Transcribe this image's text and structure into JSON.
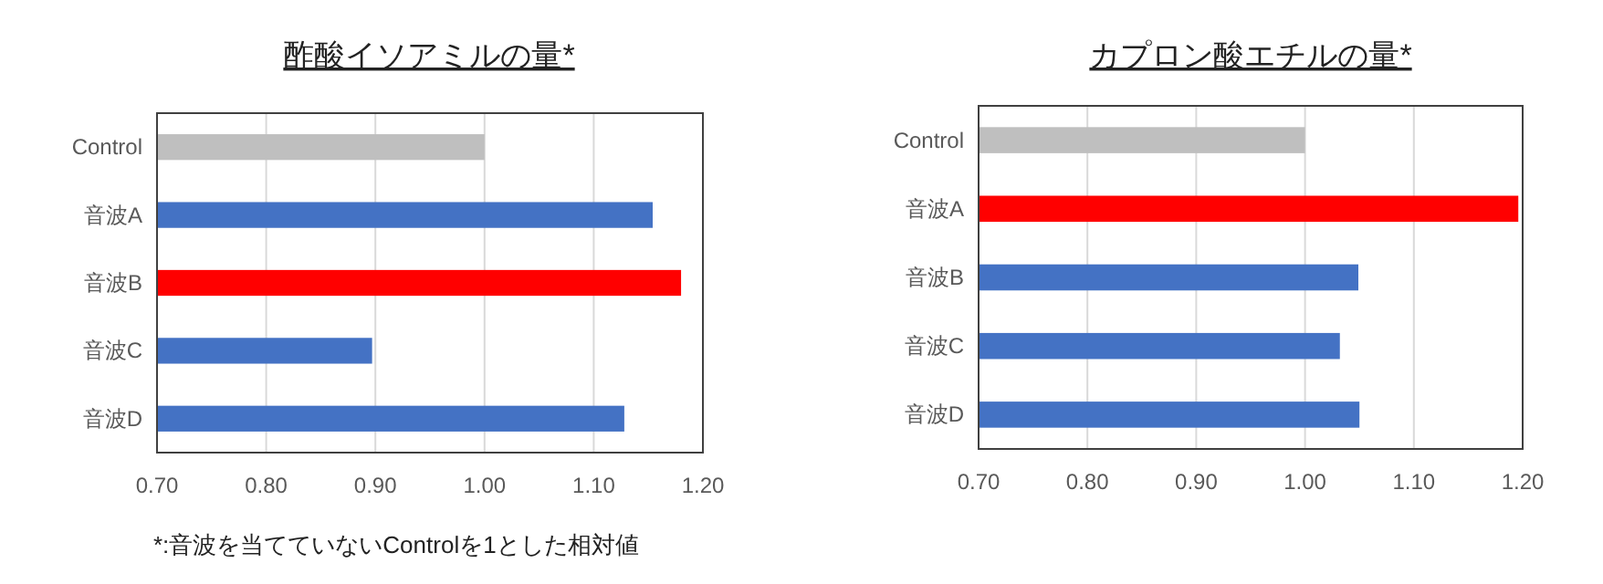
{
  "chart_data": [
    {
      "type": "bar",
      "orientation": "horizontal",
      "title": "酢酸イソアミルの量*",
      "categories": [
        "Control",
        "音波A",
        "音波B",
        "音波C",
        "音波D"
      ],
      "values": [
        1.0,
        1.154,
        1.18,
        0.897,
        1.128
      ],
      "colors": [
        "#bfbfbf",
        "#4472c4",
        "#ff0000",
        "#4472c4",
        "#4472c4"
      ],
      "xlim": [
        0.7,
        1.2
      ],
      "xticks": [
        {
          "value": 0.7,
          "label": "0.70"
        },
        {
          "value": 0.8,
          "label": "0.80"
        },
        {
          "value": 0.9,
          "label": "0.90"
        },
        {
          "value": 1.0,
          "label": "1.00"
        },
        {
          "value": 1.1,
          "label": "1.10"
        },
        {
          "value": 1.2,
          "label": "1.20"
        }
      ],
      "grid": "x",
      "annotations": [
        "*:音波を当てていないControlを1とした相対値"
      ]
    },
    {
      "type": "bar",
      "orientation": "horizontal",
      "title": "カプロン酸エチルの量*",
      "categories": [
        "Control",
        "音波A",
        "音波B",
        "音波C",
        "音波D"
      ],
      "values": [
        1.0,
        1.196,
        1.049,
        1.032,
        1.05
      ],
      "colors": [
        "#bfbfbf",
        "#ff0000",
        "#4472c4",
        "#4472c4",
        "#4472c4"
      ],
      "xlim": [
        0.7,
        1.2
      ],
      "xticks": [
        {
          "value": 0.7,
          "label": "0.70"
        },
        {
          "value": 0.8,
          "label": "0.80"
        },
        {
          "value": 0.9,
          "label": "0.90"
        },
        {
          "value": 1.0,
          "label": "1.00"
        },
        {
          "value": 1.1,
          "label": "1.10"
        },
        {
          "value": 1.2,
          "label": "1.20"
        }
      ],
      "grid": "x"
    }
  ]
}
